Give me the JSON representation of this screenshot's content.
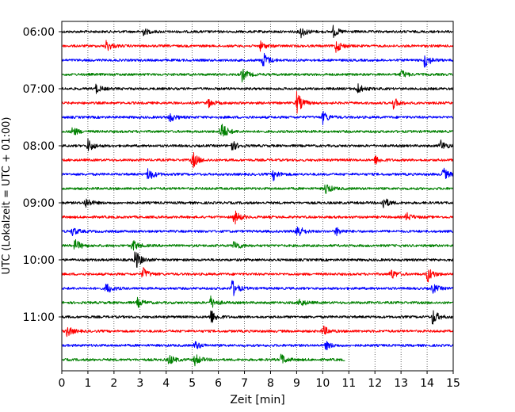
{
  "chart_data": {
    "type": "line",
    "title": "",
    "xlabel": "Zeit  [min]",
    "ylabel": "UTC (Lokalzeit = UTC + 01:00)",
    "xlim": [
      0,
      15
    ],
    "x_ticks": [
      "0",
      "1",
      "2",
      "3",
      "4",
      "5",
      "6",
      "7",
      "8",
      "9",
      "10",
      "11",
      "12",
      "13",
      "14",
      "15"
    ],
    "y_ticks": [
      "06:00",
      "07:00",
      "08:00",
      "09:00",
      "10:00",
      "11:00"
    ],
    "row_minutes": 15,
    "grid": "vertical dotted lines at each minute",
    "colors": [
      "#000000",
      "#ff0000",
      "#0000ff",
      "#008000"
    ],
    "rows": [
      {
        "label": "06:00",
        "color": "#000000",
        "end_min": 15,
        "events": [
          {
            "t": 3.1,
            "a": 0.35
          },
          {
            "t": 9.15,
            "a": 0.55
          },
          {
            "t": 10.4,
            "a": 0.5
          }
        ]
      },
      {
        "label": "06:15",
        "color": "#ff0000",
        "end_min": 15,
        "events": [
          {
            "t": 1.7,
            "a": 0.5
          },
          {
            "t": 7.6,
            "a": 0.4
          },
          {
            "t": 10.5,
            "a": 0.6
          }
        ]
      },
      {
        "label": "06:30",
        "color": "#0000ff",
        "end_min": 15,
        "events": [
          {
            "t": 7.7,
            "a": 0.8
          },
          {
            "t": 13.9,
            "a": 0.7
          }
        ]
      },
      {
        "label": "06:45",
        "color": "#008000",
        "end_min": 15,
        "events": [
          {
            "t": 6.9,
            "a": 0.6
          },
          {
            "t": 13.0,
            "a": 0.4
          }
        ]
      },
      {
        "label": "07:00",
        "color": "#000000",
        "end_min": 15,
        "events": [
          {
            "t": 1.3,
            "a": 0.4
          },
          {
            "t": 11.3,
            "a": 0.55
          }
        ]
      },
      {
        "label": "07:15",
        "color": "#ff0000",
        "end_min": 15,
        "events": [
          {
            "t": 5.6,
            "a": 0.4
          },
          {
            "t": 9.0,
            "a": 1.0
          },
          {
            "t": 12.7,
            "a": 0.5
          }
        ]
      },
      {
        "label": "07:30",
        "color": "#0000ff",
        "end_min": 15,
        "events": [
          {
            "t": 4.1,
            "a": 0.5
          },
          {
            "t": 10.0,
            "a": 0.6
          }
        ]
      },
      {
        "label": "07:45",
        "color": "#008000",
        "end_min": 15,
        "events": [
          {
            "t": 0.4,
            "a": 0.45
          },
          {
            "t": 6.1,
            "a": 1.0
          }
        ]
      },
      {
        "label": "08:00",
        "color": "#000000",
        "end_min": 15,
        "events": [
          {
            "t": 1.0,
            "a": 0.6
          },
          {
            "t": 6.5,
            "a": 0.5
          },
          {
            "t": 14.5,
            "a": 0.55
          }
        ]
      },
      {
        "label": "08:15",
        "color": "#ff0000",
        "end_min": 15,
        "events": [
          {
            "t": 5.0,
            "a": 0.8
          },
          {
            "t": 12.0,
            "a": 0.4
          }
        ]
      },
      {
        "label": "08:30",
        "color": "#0000ff",
        "end_min": 15,
        "events": [
          {
            "t": 3.3,
            "a": 0.65
          },
          {
            "t": 8.1,
            "a": 0.5
          },
          {
            "t": 14.6,
            "a": 0.6
          }
        ]
      },
      {
        "label": "08:45",
        "color": "#008000",
        "end_min": 15,
        "events": [
          {
            "t": 10.1,
            "a": 0.55
          }
        ]
      },
      {
        "label": "09:00",
        "color": "#000000",
        "end_min": 15,
        "events": [
          {
            "t": 0.9,
            "a": 0.5
          },
          {
            "t": 12.3,
            "a": 0.6
          }
        ]
      },
      {
        "label": "09:15",
        "color": "#ff0000",
        "end_min": 15,
        "events": [
          {
            "t": 6.6,
            "a": 0.7
          },
          {
            "t": 13.2,
            "a": 0.4
          }
        ]
      },
      {
        "label": "09:30",
        "color": "#0000ff",
        "end_min": 15,
        "events": [
          {
            "t": 0.4,
            "a": 0.4
          },
          {
            "t": 9.0,
            "a": 0.75
          },
          {
            "t": 10.5,
            "a": 0.4
          }
        ]
      },
      {
        "label": "09:45",
        "color": "#008000",
        "end_min": 15,
        "events": [
          {
            "t": 0.5,
            "a": 0.6
          },
          {
            "t": 2.7,
            "a": 0.55
          },
          {
            "t": 6.6,
            "a": 0.5
          }
        ]
      },
      {
        "label": "10:00",
        "color": "#000000",
        "end_min": 15,
        "events": [
          {
            "t": 2.8,
            "a": 1.0
          }
        ]
      },
      {
        "label": "10:15",
        "color": "#ff0000",
        "end_min": 15,
        "events": [
          {
            "t": 3.1,
            "a": 0.6
          },
          {
            "t": 12.6,
            "a": 0.5
          },
          {
            "t": 14.0,
            "a": 0.8
          }
        ]
      },
      {
        "label": "10:30",
        "color": "#0000ff",
        "end_min": 15,
        "events": [
          {
            "t": 1.7,
            "a": 0.55
          },
          {
            "t": 6.5,
            "a": 0.9
          },
          {
            "t": 14.2,
            "a": 0.45
          }
        ]
      },
      {
        "label": "10:45",
        "color": "#008000",
        "end_min": 15,
        "events": [
          {
            "t": 2.9,
            "a": 0.4
          },
          {
            "t": 5.7,
            "a": 0.55
          },
          {
            "t": 9.1,
            "a": 0.4
          }
        ]
      },
      {
        "label": "11:00",
        "color": "#000000",
        "end_min": 15,
        "events": [
          {
            "t": 5.7,
            "a": 0.7
          },
          {
            "t": 14.2,
            "a": 0.75
          }
        ]
      },
      {
        "label": "11:15",
        "color": "#ff0000",
        "end_min": 15,
        "events": [
          {
            "t": 0.2,
            "a": 0.5
          },
          {
            "t": 10.0,
            "a": 0.5
          }
        ]
      },
      {
        "label": "11:30",
        "color": "#0000ff",
        "end_min": 15,
        "events": [
          {
            "t": 5.1,
            "a": 0.4
          },
          {
            "t": 10.1,
            "a": 0.4
          }
        ]
      },
      {
        "label": "11:45",
        "color": "#008000",
        "end_min": 10.85,
        "events": [
          {
            "t": 4.1,
            "a": 0.5
          },
          {
            "t": 5.1,
            "a": 0.55
          },
          {
            "t": 8.4,
            "a": 0.5
          }
        ]
      }
    ]
  }
}
